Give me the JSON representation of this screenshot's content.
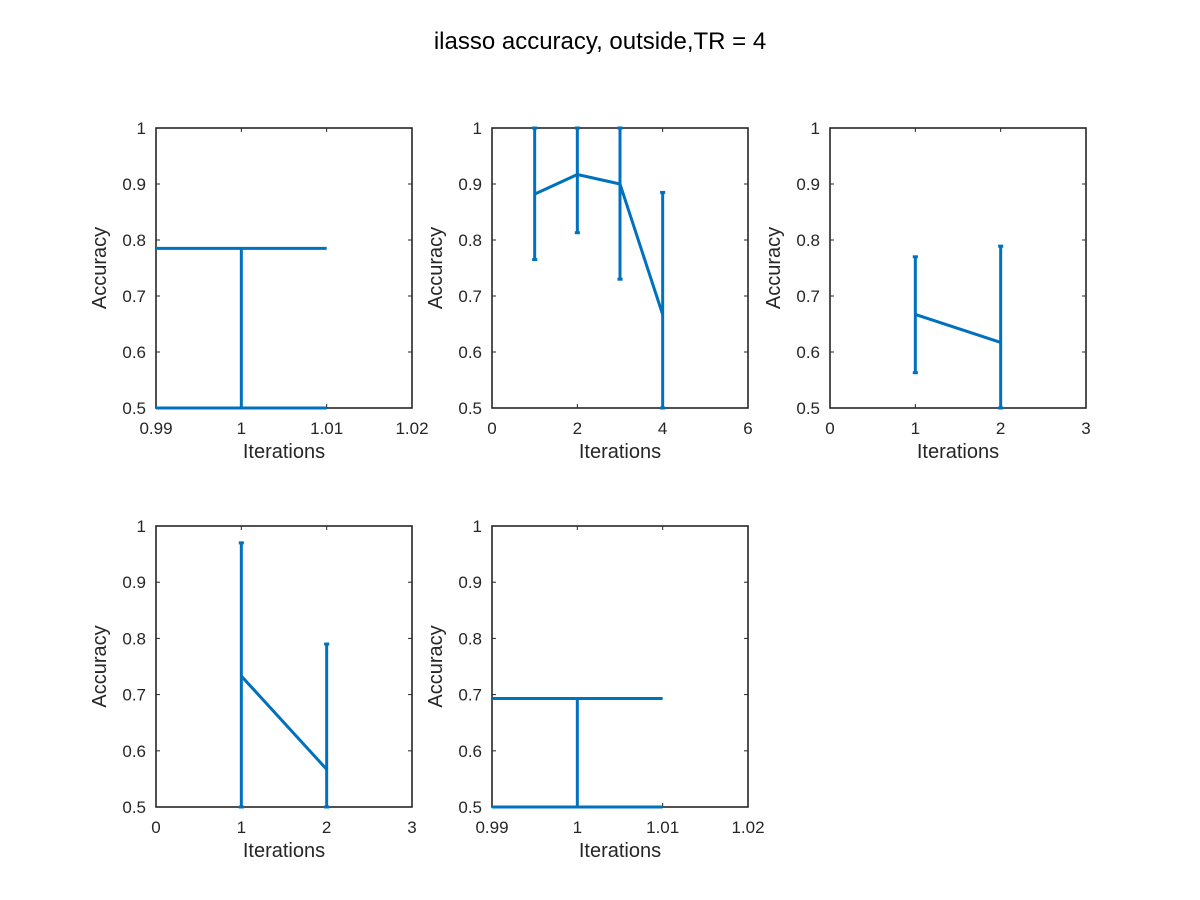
{
  "figure": {
    "title": "ilasso accuracy, outside,TR = 4"
  },
  "style": {
    "series_color": "#0072BD",
    "axis_color": "#262626"
  },
  "chart_data": [
    {
      "type": "line",
      "error_bars": true,
      "xlabel": "Iterations",
      "ylabel": "Accuracy",
      "xlim": [
        0.99,
        1.02
      ],
      "ylim": [
        0.5,
        1
      ],
      "xticks": [
        "0.99",
        "1",
        "1.01",
        "1.02"
      ],
      "yticks": [
        "0.5",
        "0.6",
        "0.7",
        "0.8",
        "0.9",
        "1"
      ],
      "x": [
        1
      ],
      "y": [
        0.785
      ],
      "err_low": [
        0.5
      ],
      "err_high": [
        0.785
      ],
      "errorbar_cap_halfwidth": 0.01
    },
    {
      "type": "line",
      "error_bars": true,
      "xlabel": "Iterations",
      "ylabel": "Accuracy",
      "xlim": [
        0,
        6
      ],
      "ylim": [
        0.5,
        1
      ],
      "xticks": [
        "0",
        "2",
        "4",
        "6"
      ],
      "yticks": [
        "0.5",
        "0.6",
        "0.7",
        "0.8",
        "0.9",
        "1"
      ],
      "x": [
        1,
        2,
        3,
        4
      ],
      "y": [
        0.882,
        0.917,
        0.9,
        0.667
      ],
      "err_low": [
        0.765,
        0.813,
        0.73,
        0.5
      ],
      "err_high": [
        1.0,
        1.0,
        1.0,
        0.885
      ],
      "errorbar_cap_halfwidth": 0.06
    },
    {
      "type": "line",
      "error_bars": true,
      "xlabel": "Iterations",
      "ylabel": "Accuracy",
      "xlim": [
        0,
        3
      ],
      "ylim": [
        0.5,
        1
      ],
      "xticks": [
        "0",
        "1",
        "2",
        "3"
      ],
      "yticks": [
        "0.5",
        "0.6",
        "0.7",
        "0.8",
        "0.9",
        "1"
      ],
      "x": [
        1,
        2
      ],
      "y": [
        0.667,
        0.617
      ],
      "err_low": [
        0.563,
        0.5
      ],
      "err_high": [
        0.77,
        0.789
      ],
      "errorbar_cap_halfwidth": 0.03
    },
    {
      "type": "line",
      "error_bars": true,
      "xlabel": "Iterations",
      "ylabel": "Accuracy",
      "xlim": [
        0,
        3
      ],
      "ylim": [
        0.5,
        1
      ],
      "xticks": [
        "0",
        "1",
        "2",
        "3"
      ],
      "yticks": [
        "0.5",
        "0.6",
        "0.7",
        "0.8",
        "0.9",
        "1"
      ],
      "x": [
        1,
        2
      ],
      "y": [
        0.733,
        0.567
      ],
      "err_low": [
        0.5,
        0.5
      ],
      "err_high": [
        0.97,
        0.79
      ],
      "errorbar_cap_halfwidth": 0.03
    },
    {
      "type": "line",
      "error_bars": true,
      "xlabel": "Iterations",
      "ylabel": "Accuracy",
      "xlim": [
        0.99,
        1.02
      ],
      "ylim": [
        0.5,
        1
      ],
      "xticks": [
        "0.99",
        "1",
        "1.01",
        "1.02"
      ],
      "yticks": [
        "0.5",
        "0.6",
        "0.7",
        "0.8",
        "0.9",
        "1"
      ],
      "x": [
        1
      ],
      "y": [
        0.693
      ],
      "err_low": [
        0.5
      ],
      "err_high": [
        0.693
      ],
      "errorbar_cap_halfwidth": 0.01
    }
  ]
}
